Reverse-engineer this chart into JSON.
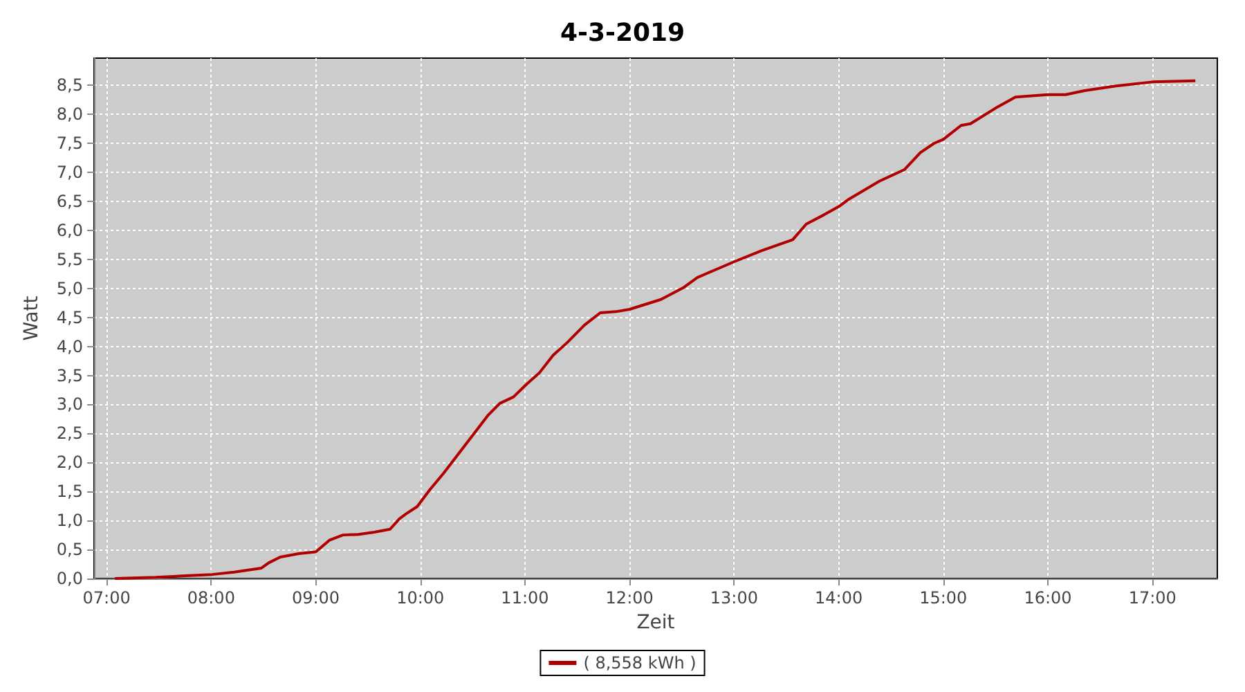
{
  "chart_data": {
    "type": "line",
    "title": "4-3-2019",
    "xlabel": "Zeit",
    "ylabel": "Watt",
    "xlim": [
      6.88,
      17.62
    ],
    "ylim": [
      0,
      8.97
    ],
    "xticks": [
      {
        "value": 7,
        "label": "07:00"
      },
      {
        "value": 8,
        "label": "08:00"
      },
      {
        "value": 9,
        "label": "09:00"
      },
      {
        "value": 10,
        "label": "10:00"
      },
      {
        "value": 11,
        "label": "11:00"
      },
      {
        "value": 12,
        "label": "12:00"
      },
      {
        "value": 13,
        "label": "13:00"
      },
      {
        "value": 14,
        "label": "14:00"
      },
      {
        "value": 15,
        "label": "15:00"
      },
      {
        "value": 16,
        "label": "16:00"
      },
      {
        "value": 17,
        "label": "17:00"
      }
    ],
    "yticks": [
      {
        "value": 0,
        "label": "0,0"
      },
      {
        "value": 0.5,
        "label": "0,5"
      },
      {
        "value": 1,
        "label": "1,0"
      },
      {
        "value": 1.5,
        "label": "1,5"
      },
      {
        "value": 2,
        "label": "2,0"
      },
      {
        "value": 2.5,
        "label": "2,5"
      },
      {
        "value": 3,
        "label": "3,0"
      },
      {
        "value": 3.5,
        "label": "3,5"
      },
      {
        "value": 4,
        "label": "4,0"
      },
      {
        "value": 4.5,
        "label": "4,5"
      },
      {
        "value": 5,
        "label": "5,0"
      },
      {
        "value": 5.5,
        "label": "5,5"
      },
      {
        "value": 6,
        "label": "6,0"
      },
      {
        "value": 6.5,
        "label": "6,5"
      },
      {
        "value": 7,
        "label": "7,0"
      },
      {
        "value": 7.5,
        "label": "7,5"
      },
      {
        "value": 8,
        "label": "8,0"
      },
      {
        "value": 8.5,
        "label": "8,5"
      }
    ],
    "grid": true,
    "legend": "bottom",
    "marker": "none",
    "line_style": "solid",
    "series": [
      {
        "name": "( 8,558 kWh )",
        "color": "#b00000",
        "x": [
          7.08,
          7.47,
          7.79,
          8.01,
          8.22,
          8.48,
          8.55,
          8.66,
          8.84,
          9.0,
          9.13,
          9.26,
          9.41,
          9.56,
          9.71,
          9.8,
          9.86,
          9.97,
          10.09,
          10.22,
          10.39,
          10.65,
          10.76,
          10.89,
          11.01,
          11.14,
          11.27,
          11.4,
          11.57,
          11.72,
          11.87,
          12.0,
          12.3,
          12.52,
          12.65,
          13.0,
          13.26,
          13.56,
          13.69,
          13.86,
          14.0,
          14.09,
          14.39,
          14.63,
          14.78,
          14.91,
          15.0,
          15.17,
          15.26,
          15.52,
          15.69,
          16.0,
          16.17,
          16.35,
          16.65,
          17.0,
          17.41
        ],
        "values": [
          0,
          0.02,
          0.05,
          0.07,
          0.11,
          0.18,
          0.27,
          0.37,
          0.43,
          0.46,
          0.66,
          0.75,
          0.76,
          0.8,
          0.85,
          1.03,
          1.11,
          1.24,
          1.53,
          1.81,
          2.21,
          2.82,
          3.02,
          3.13,
          3.34,
          3.55,
          3.85,
          4.06,
          4.37,
          4.58,
          4.6,
          4.64,
          4.81,
          5.02,
          5.19,
          5.46,
          5.65,
          5.84,
          6.11,
          6.27,
          6.41,
          6.53,
          6.85,
          7.05,
          7.34,
          7.5,
          7.57,
          7.81,
          7.84,
          8.13,
          8.3,
          8.34,
          8.34,
          8.41,
          8.49,
          8.56,
          8.58
        ]
      }
    ]
  }
}
